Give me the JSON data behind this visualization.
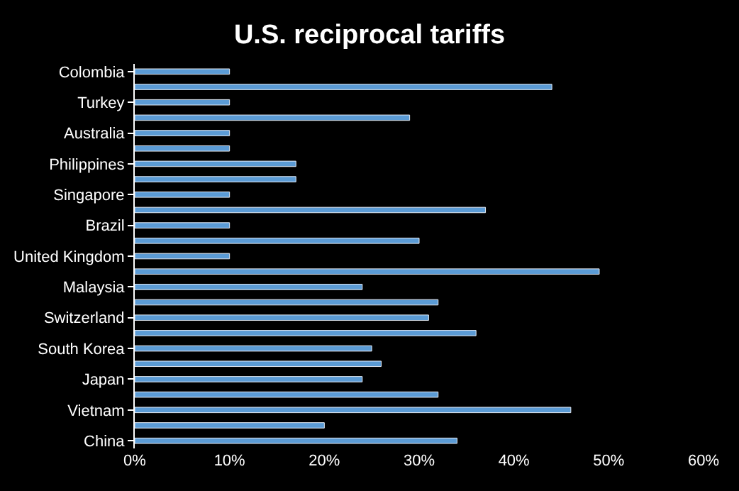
{
  "chart_data": {
    "type": "bar",
    "orientation": "horizontal",
    "title": "U.S. reciprocal tariffs",
    "categories": [
      "Colombia",
      null,
      "Turkey",
      null,
      "Australia",
      null,
      "Philippines",
      null,
      "Singapore",
      null,
      "Brazil",
      null,
      "United Kingdom",
      null,
      "Malaysia",
      null,
      "Switzerland",
      null,
      "South Korea",
      null,
      "Japan",
      null,
      "Vietnam",
      null,
      "China"
    ],
    "values": [
      0.1,
      0.44,
      0.1,
      0.29,
      0.1,
      0.1,
      0.17,
      0.17,
      0.1,
      0.37,
      0.1,
      0.3,
      0.1,
      0.49,
      0.24,
      0.32,
      0.31,
      0.36,
      0.25,
      0.26,
      0.24,
      0.32,
      0.46,
      0.2,
      0.34
    ],
    "color": "#5b9bd5",
    "xlim": [
      0,
      0.6
    ],
    "xticks": [
      {
        "value": 0,
        "label": "0%"
      },
      {
        "value": 0.1,
        "label": "10%"
      },
      {
        "value": 0.2,
        "label": "20%"
      },
      {
        "value": 0.3,
        "label": "30%"
      },
      {
        "value": 0.4,
        "label": "40%"
      },
      {
        "value": 0.5,
        "label": "50%"
      },
      {
        "value": 0.6,
        "label": "60%"
      }
    ],
    "grid": false
  }
}
